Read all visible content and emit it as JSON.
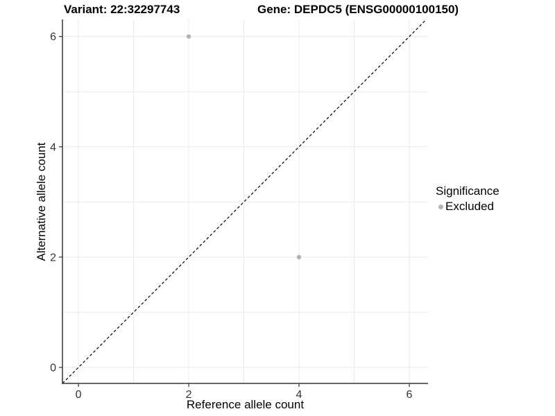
{
  "titles": {
    "variant": "Variant: 22:32297743",
    "gene": "Gene: DEPDC5 (ENSG00000100150)"
  },
  "chart_data": {
    "type": "scatter",
    "title_left": "Variant: 22:32297743",
    "title_right": "Gene: DEPDC5 (ENSG00000100150)",
    "xlabel": "Reference allele count",
    "ylabel": "Alternative allele count",
    "xlim": [
      -0.29,
      6.34
    ],
    "ylim": [
      -0.29,
      6.31
    ],
    "xticks": [
      0,
      2,
      4,
      6
    ],
    "yticks": [
      0,
      2,
      4,
      6
    ],
    "grid_x": [
      0,
      1,
      2,
      3,
      4,
      5,
      6
    ],
    "grid_y": [
      0,
      1,
      2,
      3,
      4,
      5,
      6
    ],
    "grid_on": true,
    "series": [
      {
        "name": "Excluded",
        "color": "#b3b3b3",
        "points": [
          {
            "x": 2,
            "y": 6
          },
          {
            "x": 4,
            "y": 2
          }
        ]
      }
    ],
    "identity_line": {
      "type": "y=x",
      "style": "dashed",
      "color": "#000000"
    },
    "legend": {
      "position": "right",
      "title": "Significance",
      "entries": [
        {
          "label": "Excluded",
          "color": "#b3b3b3"
        }
      ]
    },
    "colors": {
      "background": "#ffffff",
      "gridline": "#ebebeb",
      "axis_line": "#333333",
      "tick_label": "#333333",
      "point": "#b3b3b3"
    }
  }
}
